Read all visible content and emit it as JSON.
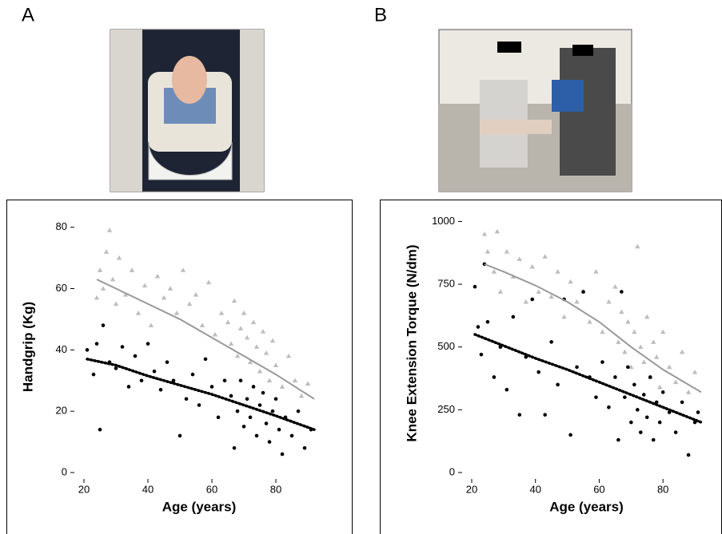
{
  "chart_data": [
    {
      "type": "scatter",
      "panel_label": "A",
      "x_label": "Age (years)",
      "y_label": "Handgrip (Kg)",
      "xlim": [
        17,
        95
      ],
      "xticks": [
        20,
        40,
        60,
        80
      ],
      "ylim": [
        0,
        82
      ],
      "yticks": [
        0,
        20,
        40,
        60,
        80
      ],
      "series": [
        {
          "mode": "markers",
          "marker": "triangle",
          "color": "#bdbdbd",
          "x": [
            24,
            25,
            26,
            27,
            28,
            29,
            30,
            31,
            33,
            35,
            37,
            39,
            41,
            43,
            45,
            47,
            49,
            51,
            53,
            55,
            57,
            59,
            61,
            63,
            65,
            66,
            67,
            68,
            69,
            70,
            71,
            72,
            73,
            74,
            75,
            76,
            77,
            78,
            79,
            80,
            82,
            84,
            86,
            88,
            90
          ],
          "values": [
            57,
            66,
            60,
            72,
            79,
            63,
            55,
            70,
            58,
            66,
            52,
            61,
            48,
            64,
            57,
            60,
            52,
            66,
            55,
            58,
            48,
            62,
            45,
            52,
            49,
            42,
            56,
            38,
            47,
            52,
            44,
            36,
            49,
            41,
            33,
            46,
            39,
            30,
            43,
            35,
            28,
            38,
            30,
            25,
            29
          ]
        },
        {
          "mode": "markers",
          "marker": "circle",
          "color": "#000000",
          "x": [
            21,
            23,
            24,
            25,
            26,
            28,
            30,
            32,
            34,
            36,
            38,
            40,
            42,
            44,
            46,
            48,
            50,
            52,
            54,
            56,
            58,
            60,
            62,
            64,
            66,
            67,
            68,
            69,
            70,
            71,
            72,
            73,
            74,
            75,
            76,
            77,
            78,
            79,
            80,
            81,
            82,
            83,
            85,
            87,
            89,
            91
          ],
          "values": [
            40,
            32,
            42,
            14,
            48,
            36,
            34,
            41,
            28,
            38,
            30,
            42,
            33,
            27,
            36,
            30,
            12,
            24,
            32,
            22,
            37,
            28,
            18,
            30,
            25,
            8,
            20,
            30,
            15,
            24,
            18,
            28,
            12,
            22,
            26,
            16,
            10,
            20,
            24,
            14,
            6,
            18,
            12,
            20,
            8,
            14
          ]
        },
        {
          "mode": "line",
          "dash": "solid",
          "color": "#999999",
          "x": [
            24,
            30,
            40,
            50,
            60,
            70,
            80,
            92
          ],
          "values": [
            63,
            60,
            55,
            50,
            44,
            38,
            32,
            24
          ]
        },
        {
          "mode": "line",
          "dash": "dotted",
          "color": "#000000",
          "x": [
            21,
            30,
            40,
            50,
            60,
            70,
            80,
            92
          ],
          "values": [
            37,
            35,
            31.5,
            28.5,
            25.5,
            22,
            18.5,
            14
          ]
        }
      ]
    },
    {
      "type": "scatter",
      "panel_label": "B",
      "x_label": "Age (years)",
      "y_label": "Knee Extension Torque (N/dm)",
      "xlim": [
        17,
        95
      ],
      "xticks": [
        20,
        40,
        60,
        80
      ],
      "ylim": [
        0,
        1030
      ],
      "yticks": [
        0,
        250,
        500,
        750,
        1000
      ],
      "series": [
        {
          "mode": "markers",
          "marker": "triangle",
          "color": "#bdbdbd",
          "x": [
            24,
            25,
            27,
            28,
            29,
            31,
            33,
            35,
            37,
            39,
            41,
            43,
            45,
            47,
            49,
            51,
            53,
            55,
            57,
            59,
            61,
            63,
            65,
            66,
            67,
            68,
            69,
            70,
            71,
            72,
            73,
            74,
            75,
            76,
            77,
            78,
            79,
            80,
            82,
            84,
            86,
            88,
            90
          ],
          "values": [
            950,
            880,
            800,
            960,
            720,
            880,
            780,
            850,
            680,
            820,
            720,
            860,
            700,
            800,
            620,
            760,
            680,
            720,
            600,
            800,
            560,
            680,
            740,
            520,
            640,
            480,
            600,
            420,
            560,
            900,
            500,
            440,
            620,
            380,
            520,
            460,
            340,
            560,
            420,
            360,
            480,
            320,
            400
          ]
        },
        {
          "mode": "markers",
          "marker": "circle",
          "color": "#000000",
          "x": [
            21,
            22,
            23,
            24,
            25,
            27,
            29,
            31,
            33,
            35,
            37,
            39,
            41,
            43,
            45,
            47,
            49,
            51,
            53,
            55,
            57,
            59,
            61,
            63,
            65,
            66,
            67,
            68,
            69,
            70,
            71,
            72,
            73,
            74,
            75,
            76,
            77,
            78,
            79,
            80,
            82,
            84,
            86,
            88,
            90,
            91
          ],
          "values": [
            740,
            580,
            470,
            830,
            600,
            380,
            500,
            330,
            620,
            230,
            460,
            690,
            400,
            230,
            520,
            350,
            690,
            150,
            420,
            720,
            380,
            300,
            440,
            260,
            380,
            130,
            720,
            300,
            420,
            200,
            350,
            250,
            160,
            310,
            220,
            380,
            130,
            280,
            200,
            320,
            240,
            160,
            280,
            70,
            200,
            240
          ]
        },
        {
          "mode": "line",
          "dash": "solid",
          "color": "#999999",
          "x": [
            24,
            30,
            40,
            50,
            60,
            70,
            80,
            92
          ],
          "values": [
            830,
            800,
            745,
            680,
            600,
            500,
            410,
            320
          ]
        },
        {
          "mode": "line",
          "dash": "dotted",
          "color": "#000000",
          "x": [
            21,
            30,
            40,
            50,
            60,
            70,
            80,
            92
          ],
          "values": [
            550,
            505,
            455,
            410,
            360,
            310,
            260,
            200
          ]
        }
      ]
    }
  ]
}
